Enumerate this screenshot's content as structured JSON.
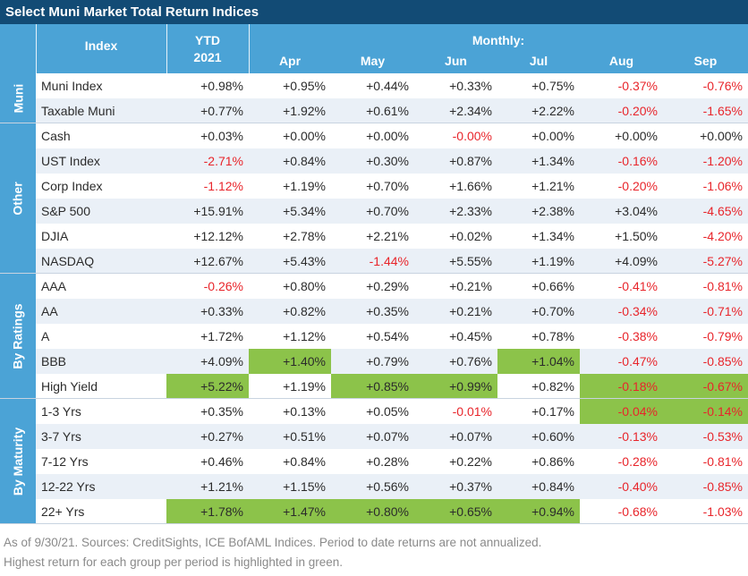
{
  "title": "Select Muni Market Total Return Indices",
  "headers": {
    "index": "Index",
    "ytd_line1": "YTD",
    "ytd_line2": "2021",
    "monthly": "Monthly:",
    "months": [
      "Apr",
      "May",
      "Jun",
      "Jul",
      "Aug",
      "Sep"
    ]
  },
  "groups": [
    {
      "label": "Muni",
      "rows": [
        {
          "name": "Muni Index",
          "values": [
            "+0.98%",
            "+0.95%",
            "+0.44%",
            "+0.33%",
            "+0.75%",
            "-0.37%",
            "-0.76%"
          ],
          "highlight": [
            false,
            false,
            false,
            false,
            false,
            false,
            false
          ]
        },
        {
          "name": "Taxable Muni",
          "values": [
            "+0.77%",
            "+1.92%",
            "+0.61%",
            "+2.34%",
            "+2.22%",
            "-0.20%",
            "-1.65%"
          ],
          "highlight": [
            false,
            false,
            false,
            false,
            false,
            false,
            false
          ]
        }
      ]
    },
    {
      "label": "Other",
      "rows": [
        {
          "name": "Cash",
          "values": [
            "+0.03%",
            "+0.00%",
            "+0.00%",
            "-0.00%",
            "+0.00%",
            "+0.00%",
            "+0.00%"
          ],
          "highlight": [
            false,
            false,
            false,
            false,
            false,
            false,
            false
          ]
        },
        {
          "name": "UST Index",
          "values": [
            "-2.71%",
            "+0.84%",
            "+0.30%",
            "+0.87%",
            "+1.34%",
            "-0.16%",
            "-1.20%"
          ],
          "highlight": [
            false,
            false,
            false,
            false,
            false,
            false,
            false
          ]
        },
        {
          "name": "Corp Index",
          "values": [
            "-1.12%",
            "+1.19%",
            "+0.70%",
            "+1.66%",
            "+1.21%",
            "-0.20%",
            "-1.06%"
          ],
          "highlight": [
            false,
            false,
            false,
            false,
            false,
            false,
            false
          ]
        },
        {
          "name": "S&P 500",
          "values": [
            "+15.91%",
            "+5.34%",
            "+0.70%",
            "+2.33%",
            "+2.38%",
            "+3.04%",
            "-4.65%"
          ],
          "highlight": [
            false,
            false,
            false,
            false,
            false,
            false,
            false
          ]
        },
        {
          "name": "DJIA",
          "values": [
            "+12.12%",
            "+2.78%",
            "+2.21%",
            "+0.02%",
            "+1.34%",
            "+1.50%",
            "-4.20%"
          ],
          "highlight": [
            false,
            false,
            false,
            false,
            false,
            false,
            false
          ]
        },
        {
          "name": "NASDAQ",
          "values": [
            "+12.67%",
            "+5.43%",
            "-1.44%",
            "+5.55%",
            "+1.19%",
            "+4.09%",
            "-5.27%"
          ],
          "highlight": [
            false,
            false,
            false,
            false,
            false,
            false,
            false
          ]
        }
      ]
    },
    {
      "label": "By Ratings",
      "rows": [
        {
          "name": "AAA",
          "values": [
            "-0.26%",
            "+0.80%",
            "+0.29%",
            "+0.21%",
            "+0.66%",
            "-0.41%",
            "-0.81%"
          ],
          "highlight": [
            false,
            false,
            false,
            false,
            false,
            false,
            false
          ]
        },
        {
          "name": "AA",
          "values": [
            "+0.33%",
            "+0.82%",
            "+0.35%",
            "+0.21%",
            "+0.70%",
            "-0.34%",
            "-0.71%"
          ],
          "highlight": [
            false,
            false,
            false,
            false,
            false,
            false,
            false
          ]
        },
        {
          "name": "A",
          "values": [
            "+1.72%",
            "+1.12%",
            "+0.54%",
            "+0.45%",
            "+0.78%",
            "-0.38%",
            "-0.79%"
          ],
          "highlight": [
            false,
            false,
            false,
            false,
            false,
            false,
            false
          ]
        },
        {
          "name": "BBB",
          "values": [
            "+4.09%",
            "+1.40%",
            "+0.79%",
            "+0.76%",
            "+1.04%",
            "-0.47%",
            "-0.85%"
          ],
          "highlight": [
            false,
            true,
            false,
            false,
            true,
            false,
            false
          ]
        },
        {
          "name": "High Yield",
          "values": [
            "+5.22%",
            "+1.19%",
            "+0.85%",
            "+0.99%",
            "+0.82%",
            "-0.18%",
            "-0.67%"
          ],
          "highlight": [
            true,
            false,
            true,
            true,
            false,
            true,
            true
          ]
        }
      ]
    },
    {
      "label": "By Maturity",
      "rows": [
        {
          "name": "1-3 Yrs",
          "values": [
            "+0.35%",
            "+0.13%",
            "+0.05%",
            "-0.01%",
            "+0.17%",
            "-0.04%",
            "-0.14%"
          ],
          "highlight": [
            false,
            false,
            false,
            false,
            false,
            true,
            true
          ]
        },
        {
          "name": "3-7 Yrs",
          "values": [
            "+0.27%",
            "+0.51%",
            "+0.07%",
            "+0.07%",
            "+0.60%",
            "-0.13%",
            "-0.53%"
          ],
          "highlight": [
            false,
            false,
            false,
            false,
            false,
            false,
            false
          ]
        },
        {
          "name": "7-12 Yrs",
          "values": [
            "+0.46%",
            "+0.84%",
            "+0.28%",
            "+0.22%",
            "+0.86%",
            "-0.28%",
            "-0.81%"
          ],
          "highlight": [
            false,
            false,
            false,
            false,
            false,
            false,
            false
          ]
        },
        {
          "name": "12-22 Yrs",
          "values": [
            "+1.21%",
            "+1.15%",
            "+0.56%",
            "+0.37%",
            "+0.84%",
            "-0.40%",
            "-0.85%"
          ],
          "highlight": [
            false,
            false,
            false,
            false,
            false,
            false,
            false
          ]
        },
        {
          "name": "22+ Yrs",
          "values": [
            "+1.78%",
            "+1.47%",
            "+0.80%",
            "+0.65%",
            "+0.94%",
            "-0.68%",
            "-1.03%"
          ],
          "highlight": [
            true,
            true,
            true,
            true,
            true,
            false,
            false
          ]
        }
      ]
    }
  ],
  "footnote_line1": "As of 9/30/21. Sources: CreditSights, ICE BofAML Indices. Period to date returns are not annualized.",
  "footnote_line2": "Highest return for each group per period is highlighted in green.",
  "colors": {
    "header_dark": "#124b75",
    "header_light": "#4ba3d6",
    "negative": "#e8252b",
    "highlight": "#8cc34a"
  }
}
